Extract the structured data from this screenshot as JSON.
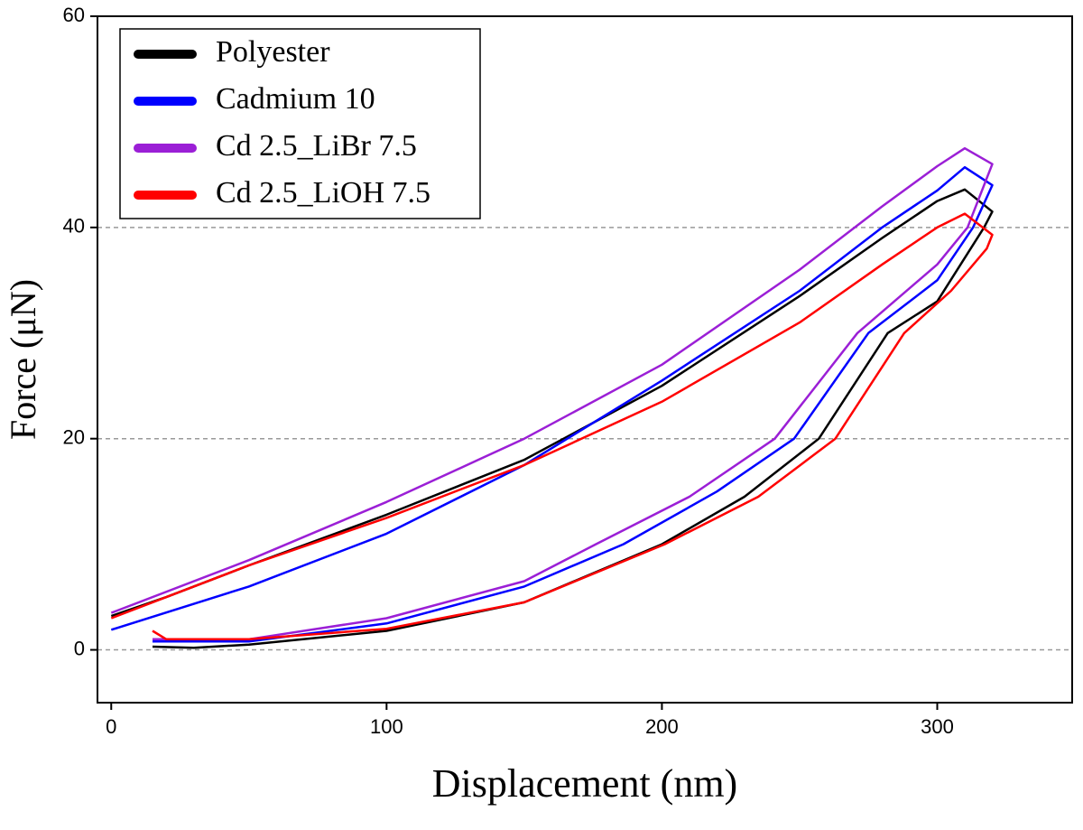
{
  "chart_data": {
    "type": "line",
    "x_label": "Displacement (nm)",
    "y_label": "Force (μN)",
    "xlim": [
      -5,
      349
    ],
    "ylim": [
      -5,
      60
    ],
    "xticks": [
      0,
      100,
      200,
      300
    ],
    "yticks": [
      0,
      20,
      40,
      60
    ],
    "grid": true,
    "legend": "upper left",
    "series": [
      {
        "name": "Polyester",
        "color": "#000000",
        "x": [
          0,
          20,
          50,
          100,
          150,
          200,
          250,
          280,
          300,
          310,
          320,
          317,
          300,
          282,
          257,
          230,
          200,
          150,
          100,
          50,
          30,
          15
        ],
        "values": [
          3.2,
          5,
          8,
          12.8,
          18,
          25,
          33.5,
          39,
          42.5,
          43.6,
          41.5,
          40,
          33,
          30,
          20,
          14.5,
          10,
          4.5,
          1.8,
          0.5,
          0.2,
          0.3
        ]
      },
      {
        "name": "Cadmium 10",
        "color": "#0000ff",
        "x": [
          0,
          50,
          100,
          150,
          200,
          250,
          280,
          300,
          310,
          320,
          313,
          300,
          275,
          248,
          220,
          186,
          150,
          100,
          50,
          15
        ],
        "values": [
          1.9,
          6,
          11,
          17.5,
          25.5,
          34,
          40,
          43.5,
          45.7,
          44,
          40,
          35,
          30,
          20,
          15,
          10,
          6,
          2.5,
          0.8,
          0.8
        ]
      },
      {
        "name": "Cd 2.5_LiBr 7.5",
        "color": "#9b1fd6",
        "x": [
          0,
          50,
          100,
          150,
          200,
          250,
          280,
          300,
          310,
          320,
          311,
          300,
          271,
          241,
          210,
          176,
          150,
          100,
          50,
          15
        ],
        "values": [
          3.5,
          8.5,
          14,
          20,
          27,
          36,
          42,
          45.8,
          47.5,
          46,
          40,
          36.5,
          30,
          20,
          14.5,
          10,
          6.5,
          3,
          1,
          1
        ]
      },
      {
        "name": "Cd 2.5_LiOH 7.5",
        "color": "#ff0000",
        "x": [
          0,
          50,
          100,
          150,
          200,
          250,
          280,
          300,
          310,
          320,
          318,
          305,
          288,
          263,
          235,
          201,
          150,
          100,
          50,
          20,
          15
        ],
        "values": [
          3,
          8,
          12.5,
          17.5,
          23.5,
          31,
          36.5,
          40,
          41.3,
          39.3,
          38,
          34,
          30,
          20,
          14.5,
          10,
          4.5,
          2,
          1,
          1,
          1.8
        ]
      }
    ]
  }
}
